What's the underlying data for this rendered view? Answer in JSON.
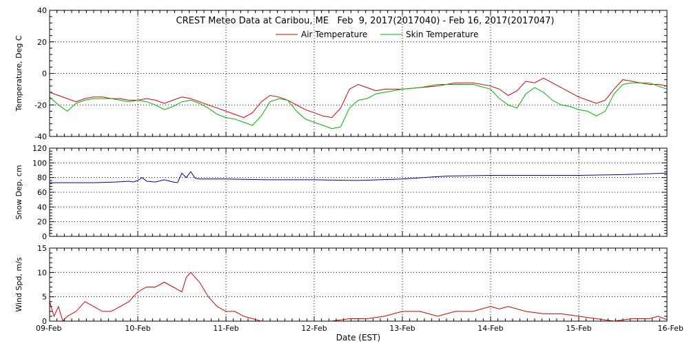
{
  "title": "CREST Meteo Data at Caribou, ME   Feb  9, 2017(2017040) - Feb 16, 2017(2017047)",
  "xlabel": "Date (EST)",
  "x_ticks": [
    "09-Feb",
    "10-Feb",
    "11-Feb",
    "12-Feb",
    "13-Feb",
    "14-Feb",
    "15-Feb",
    "16-Feb"
  ],
  "colors": {
    "air": "#d00000",
    "skin": "#00b000",
    "snow": "#00008b",
    "wind": "#d00000",
    "axis": "#000000"
  },
  "chart_data": [
    {
      "type": "line",
      "ylabel": "Temperature, Deg C",
      "xlim": [
        0,
        7
      ],
      "ylim": [
        -40,
        40
      ],
      "y_ticks": [
        -40,
        -20,
        0,
        20,
        40
      ],
      "grid": true,
      "legend": "top-center",
      "series": [
        {
          "name": "Air Temperature",
          "x": [
            0,
            0.1,
            0.2,
            0.3,
            0.4,
            0.5,
            0.6,
            0.7,
            0.8,
            0.9,
            1.0,
            1.1,
            1.2,
            1.3,
            1.4,
            1.5,
            1.6,
            1.7,
            1.8,
            1.9,
            2.0,
            2.1,
            2.2,
            2.3,
            2.4,
            2.5,
            2.6,
            2.7,
            2.8,
            2.9,
            3.0,
            3.1,
            3.2,
            3.3,
            3.4,
            3.5,
            3.6,
            3.7,
            3.8,
            3.9,
            4.0,
            4.2,
            4.4,
            4.6,
            4.8,
            5.0,
            5.1,
            5.2,
            5.3,
            5.4,
            5.5,
            5.6,
            5.7,
            5.8,
            5.9,
            6.0,
            6.1,
            6.2,
            6.3,
            6.4,
            6.5,
            6.6,
            6.7,
            6.8,
            6.9,
            7.0
          ],
          "values": [
            -12,
            -14,
            -16,
            -18,
            -16,
            -15,
            -15,
            -16,
            -16,
            -17,
            -17,
            -16,
            -17,
            -19,
            -17,
            -15,
            -16,
            -18,
            -20,
            -22,
            -24,
            -26,
            -28,
            -25,
            -18,
            -14,
            -15,
            -17,
            -20,
            -23,
            -25,
            -27,
            -28,
            -22,
            -10,
            -7,
            -9,
            -11,
            -10,
            -10,
            -10,
            -9,
            -8,
            -6,
            -6,
            -8,
            -10,
            -14,
            -11,
            -5,
            -6,
            -3,
            -6,
            -9,
            -12,
            -15,
            -17,
            -19,
            -17,
            -10,
            -4,
            -5,
            -6,
            -7,
            -7,
            -8
          ]
        },
        {
          "name": "Skin Temperature",
          "x": [
            0,
            0.1,
            0.2,
            0.3,
            0.4,
            0.5,
            0.6,
            0.7,
            0.8,
            0.9,
            1.0,
            1.1,
            1.2,
            1.3,
            1.4,
            1.5,
            1.6,
            1.7,
            1.8,
            1.9,
            2.0,
            2.1,
            2.2,
            2.3,
            2.4,
            2.5,
            2.6,
            2.7,
            2.8,
            2.9,
            3.0,
            3.1,
            3.2,
            3.3,
            3.4,
            3.5,
            3.6,
            3.7,
            3.8,
            3.9,
            4.0,
            4.2,
            4.4,
            4.6,
            4.8,
            5.0,
            5.1,
            5.2,
            5.3,
            5.4,
            5.5,
            5.6,
            5.7,
            5.8,
            5.9,
            6.0,
            6.1,
            6.2,
            6.3,
            6.4,
            6.5,
            6.6,
            6.7,
            6.8,
            6.9,
            7.0
          ],
          "values": [
            -15,
            -20,
            -24,
            -19,
            -17,
            -16,
            -16,
            -16,
            -17,
            -18,
            -17,
            -18,
            -20,
            -23,
            -21,
            -18,
            -17,
            -19,
            -22,
            -26,
            -28,
            -29,
            -31,
            -33,
            -27,
            -18,
            -16,
            -17,
            -24,
            -29,
            -31,
            -33,
            -35,
            -34,
            -22,
            -17,
            -16,
            -13,
            -12,
            -11,
            -10,
            -9,
            -7,
            -7,
            -7,
            -10,
            -16,
            -20,
            -22,
            -13,
            -9,
            -12,
            -17,
            -20,
            -21,
            -23,
            -24,
            -27,
            -24,
            -13,
            -7,
            -6,
            -6,
            -6,
            -8,
            -10
          ]
        }
      ]
    },
    {
      "type": "line",
      "ylabel": "Snow Dep, cm",
      "xlim": [
        0,
        7
      ],
      "ylim": [
        0,
        120
      ],
      "y_ticks": [
        0,
        20,
        40,
        60,
        80,
        100,
        120
      ],
      "grid": true,
      "series": [
        {
          "x": [
            0,
            0.25,
            0.5,
            0.75,
            0.9,
            0.95,
            1.0,
            1.05,
            1.1,
            1.2,
            1.3,
            1.4,
            1.45,
            1.5,
            1.55,
            1.6,
            1.65,
            1.7,
            1.8,
            2.0,
            2.5,
            3.0,
            3.5,
            4.0,
            4.5,
            5.0,
            5.5,
            6.0,
            6.5,
            7.0
          ],
          "values": [
            73,
            73,
            73,
            74,
            75,
            74,
            76,
            80,
            75,
            74,
            77,
            74,
            73,
            86,
            80,
            88,
            79,
            78,
            78,
            78,
            77,
            77,
            76,
            78,
            82,
            83,
            83,
            83,
            84,
            86
          ]
        }
      ]
    },
    {
      "type": "line",
      "ylabel": "Wind Spd, m/s",
      "xlim": [
        0,
        7
      ],
      "ylim": [
        0,
        15
      ],
      "y_ticks": [
        0,
        5,
        10,
        15
      ],
      "grid": true,
      "series": [
        {
          "x": [
            0,
            0.05,
            0.1,
            0.15,
            0.2,
            0.3,
            0.4,
            0.5,
            0.6,
            0.7,
            0.8,
            0.9,
            1.0,
            1.1,
            1.2,
            1.3,
            1.4,
            1.5,
            1.55,
            1.6,
            1.65,
            1.7,
            1.8,
            1.9,
            2.0,
            2.1,
            2.2,
            2.4,
            2.6,
            2.8,
            3.0,
            3.2,
            3.4,
            3.6,
            3.8,
            4.0,
            4.2,
            4.4,
            4.6,
            4.8,
            5.0,
            5.1,
            5.2,
            5.4,
            5.6,
            5.8,
            6.0,
            6.2,
            6.4,
            6.6,
            6.8,
            6.9,
            7.0
          ],
          "values": [
            4,
            1,
            3,
            0,
            1,
            2,
            4,
            3,
            2,
            2,
            3,
            4,
            6,
            7,
            7,
            8,
            7,
            6,
            9,
            10,
            9,
            8,
            5,
            3,
            2,
            2,
            1,
            0,
            0,
            0,
            0,
            0,
            0.5,
            0.5,
            1,
            2,
            2,
            1,
            2,
            2,
            3,
            2.5,
            3,
            2,
            1.5,
            1.5,
            1,
            0.5,
            0,
            0.5,
            0.5,
            1,
            0.3
          ]
        }
      ]
    }
  ]
}
